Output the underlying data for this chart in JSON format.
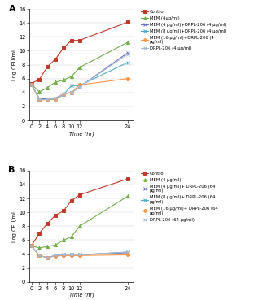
{
  "time": [
    0,
    2,
    4,
    6,
    8,
    10,
    12,
    24
  ],
  "panel_A": {
    "title": "A",
    "series": [
      {
        "label": "Control",
        "color": "#c0392b",
        "marker": "s",
        "linestyle": "-",
        "values": [
          5.3,
          5.9,
          7.7,
          8.8,
          10.4,
          11.5,
          11.5,
          14.1
        ]
      },
      {
        "label": "MEM (4μg/ml)",
        "color": "#70ad47",
        "marker": "^",
        "linestyle": "-",
        "values": [
          5.2,
          4.1,
          4.7,
          5.5,
          5.8,
          6.3,
          7.6,
          11.2
        ]
      },
      {
        "label": "MEM (4 μg/ml)+DRPL-206 (4 μg/ml)",
        "color": "#7070c8",
        "marker": "x",
        "linestyle": "-",
        "values": [
          5.2,
          3.1,
          3.1,
          3.2,
          3.8,
          4.0,
          4.8,
          9.7
        ]
      },
      {
        "label": "MEM (8 μg/ml)+DRPL-206 (4 μg/ml)",
        "color": "#4bacc6",
        "marker": "x",
        "linestyle": "-",
        "values": [
          5.2,
          3.0,
          3.0,
          3.0,
          3.7,
          5.0,
          5.0,
          8.3
        ]
      },
      {
        "label": "MEM (16 μg/ml)+DRPL-206 (4\nμg/ml)",
        "color": "#f79646",
        "marker": "o",
        "linestyle": "-",
        "values": [
          5.2,
          2.9,
          3.0,
          3.1,
          3.8,
          4.0,
          5.1,
          6.0
        ]
      },
      {
        "label": "DRPL-206 (4 μg/ml)",
        "color": "#aab8d4",
        "marker": "x",
        "linestyle": "-",
        "values": [
          5.2,
          3.0,
          3.0,
          3.2,
          3.8,
          4.0,
          4.8,
          9.5
        ]
      }
    ],
    "ylim": [
      0,
      16
    ],
    "yticks": [
      0,
      2,
      4,
      6,
      8,
      10,
      12,
      14,
      16
    ],
    "ylabel": "Log CFU/mL",
    "xlabel": "Time (hr)"
  },
  "panel_B": {
    "title": "B",
    "series": [
      {
        "label": "Control",
        "color": "#c0392b",
        "marker": "s",
        "linestyle": "-",
        "values": [
          5.2,
          7.0,
          8.4,
          9.6,
          10.2,
          11.7,
          12.5,
          14.8
        ]
      },
      {
        "label": "MEM (4 μg/ml)",
        "color": "#70ad47",
        "marker": "^",
        "linestyle": "-",
        "values": [
          5.2,
          4.9,
          5.1,
          5.3,
          6.0,
          6.5,
          8.0,
          12.3
        ]
      },
      {
        "label": "MEM (4 μg/ml)+ DRPL-206 (64\nμg/ml)",
        "color": "#7070c8",
        "marker": "x",
        "linestyle": "-",
        "values": [
          5.2,
          3.8,
          3.5,
          3.8,
          3.9,
          3.9,
          3.9,
          4.2
        ]
      },
      {
        "label": "MEM (8 μg/ml)+ DRPL-206 (64\nμg/ml)",
        "color": "#4bacc6",
        "marker": "x",
        "linestyle": "-",
        "values": [
          5.2,
          3.8,
          3.5,
          3.8,
          3.9,
          3.9,
          3.9,
          4.3
        ]
      },
      {
        "label": "MEM (16 μg/ml)+ DRPL-206 (64\nμg/ml)",
        "color": "#f79646",
        "marker": "o",
        "linestyle": "-",
        "values": [
          5.2,
          3.8,
          3.5,
          3.7,
          3.8,
          3.8,
          3.8,
          3.9
        ]
      },
      {
        "label": "DRPL-206 (64 μg/ml)",
        "color": "#aab8d4",
        "marker": "x",
        "linestyle": "-",
        "values": [
          5.2,
          3.8,
          3.5,
          3.8,
          3.9,
          3.9,
          3.9,
          4.3
        ]
      }
    ],
    "ylim": [
      0,
      16
    ],
    "yticks": [
      0,
      2,
      4,
      6,
      8,
      10,
      12,
      14,
      16
    ],
    "ylabel": "Log CFU/mL",
    "xlabel": "Time (hr)"
  },
  "background_color": "#ffffff",
  "font_size": 4.8,
  "tick_fontsize": 4.8,
  "linewidth": 0.8,
  "markersize": 3.0,
  "markeredgewidth": 0.7
}
